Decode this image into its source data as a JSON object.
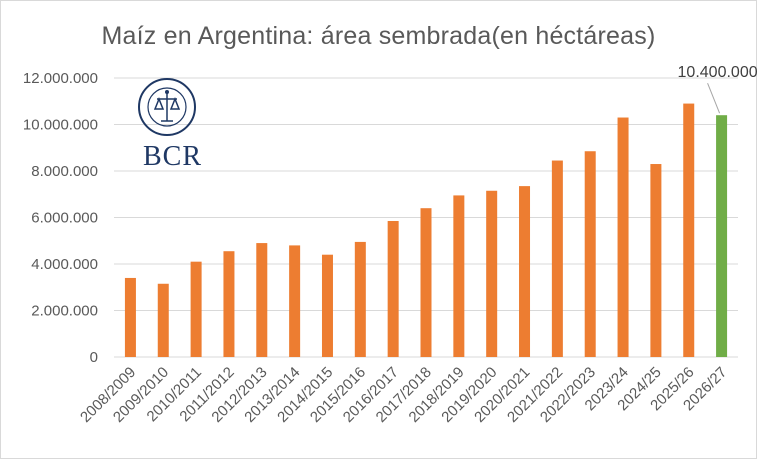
{
  "chart_data": {
    "type": "bar",
    "title": "Maíz en Argentina: área sembrada(en héctáreas)",
    "categories": [
      "2008/2009",
      "2009/2010",
      "2010/2011",
      "2011/2012",
      "2012/2013",
      "2013/2014",
      "2014/2015",
      "2015/2016",
      "2016/2017",
      "2017/2018",
      "2018/2019",
      "2019/2020",
      "2020/2021",
      "2021/2022",
      "2022/2023",
      "2023/24",
      "2024/25",
      "2025/26",
      "2026/27"
    ],
    "values": [
      3400000,
      3150000,
      4100000,
      4550000,
      4900000,
      4800000,
      4400000,
      4950000,
      5850000,
      6400000,
      6950000,
      7150000,
      7350000,
      8450000,
      8850000,
      10300000,
      8300000,
      10900000,
      10400000
    ],
    "ylim": [
      0,
      12000000
    ],
    "y_ticks": [
      "0",
      "2.000.000",
      "4.000.000",
      "6.000.000",
      "8.000.000",
      "10.000.000",
      "12.000.000"
    ],
    "y_tick_values": [
      0,
      2000000,
      4000000,
      6000000,
      8000000,
      10000000,
      12000000
    ],
    "data_labels": [
      {
        "index": 18,
        "text": "10.400.000"
      }
    ],
    "grid": true,
    "colors": {
      "default": "#ed7d31",
      "highlight": "#70ad47",
      "grid": "#d9d9d9",
      "text": "#595959"
    },
    "highlight_index": 18
  },
  "logo": {
    "text": "BCR",
    "seal_text": "BOLSA DE COMERCIO DE ROSARIO"
  }
}
